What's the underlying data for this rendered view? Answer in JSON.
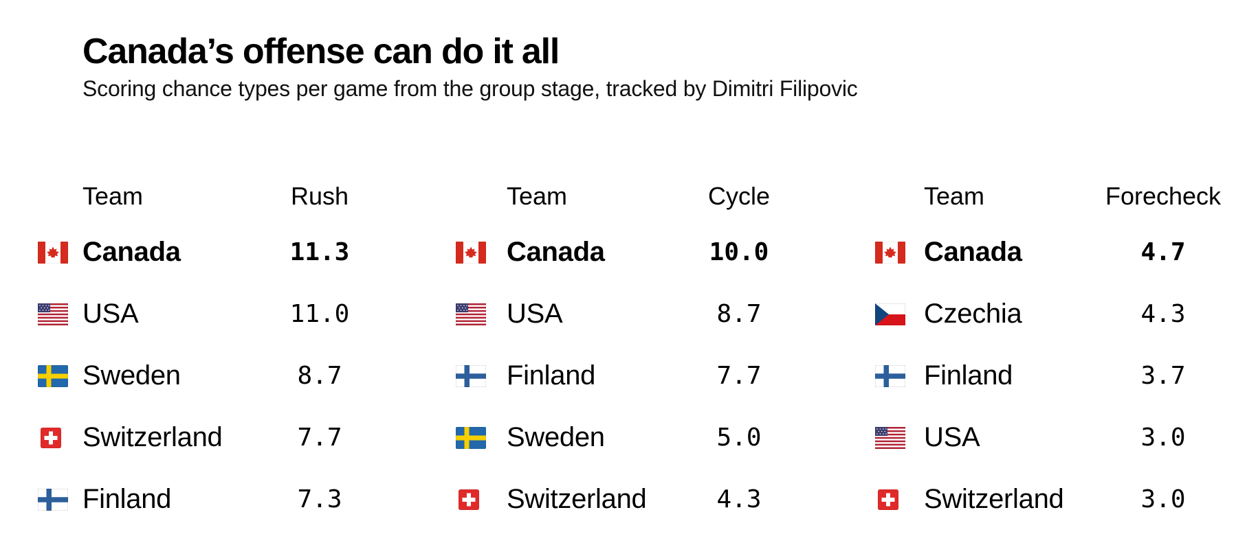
{
  "header": {
    "title": "Canada’s offense can do it all",
    "subtitle": "Scoring chance types per game from the group stage, tracked by Dimitri Filipovic"
  },
  "tables": [
    {
      "team_header": "Team",
      "value_header": "Rush",
      "rows": [
        {
          "team": "Canada",
          "flag": "canada",
          "value": "11.3",
          "leader": true
        },
        {
          "team": "USA",
          "flag": "usa",
          "value": "11.0",
          "leader": false
        },
        {
          "team": "Sweden",
          "flag": "sweden",
          "value": "8.7",
          "leader": false
        },
        {
          "team": "Switzerland",
          "flag": "switzerland",
          "value": "7.7",
          "leader": false
        },
        {
          "team": "Finland",
          "flag": "finland",
          "value": "7.3",
          "leader": false
        }
      ]
    },
    {
      "team_header": "Team",
      "value_header": "Cycle",
      "rows": [
        {
          "team": "Canada",
          "flag": "canada",
          "value": "10.0",
          "leader": true
        },
        {
          "team": "USA",
          "flag": "usa",
          "value": "8.7",
          "leader": false
        },
        {
          "team": "Finland",
          "flag": "finland",
          "value": "7.7",
          "leader": false
        },
        {
          "team": "Sweden",
          "flag": "sweden",
          "value": "5.0",
          "leader": false
        },
        {
          "team": "Switzerland",
          "flag": "switzerland",
          "value": "4.3",
          "leader": false
        }
      ]
    },
    {
      "team_header": "Team",
      "value_header": "Forecheck",
      "rows": [
        {
          "team": "Canada",
          "flag": "canada",
          "value": "4.7",
          "leader": true
        },
        {
          "team": "Czechia",
          "flag": "czechia",
          "value": "4.3",
          "leader": false
        },
        {
          "team": "Finland",
          "flag": "finland",
          "value": "3.7",
          "leader": false
        },
        {
          "team": "USA",
          "flag": "usa",
          "value": "3.0",
          "leader": false
        },
        {
          "team": "Switzerland",
          "flag": "switzerland",
          "value": "3.0",
          "leader": false
        }
      ]
    }
  ],
  "chart_data": [
    {
      "type": "table",
      "title": "Rush",
      "columns": [
        "Team",
        "Rush"
      ],
      "rows": [
        [
          "Canada",
          11.3
        ],
        [
          "USA",
          11.0
        ],
        [
          "Sweden",
          8.7
        ],
        [
          "Switzerland",
          7.7
        ],
        [
          "Finland",
          7.3
        ]
      ]
    },
    {
      "type": "table",
      "title": "Cycle",
      "columns": [
        "Team",
        "Cycle"
      ],
      "rows": [
        [
          "Canada",
          10.0
        ],
        [
          "USA",
          8.7
        ],
        [
          "Finland",
          7.7
        ],
        [
          "Sweden",
          5.0
        ],
        [
          "Switzerland",
          4.3
        ]
      ]
    },
    {
      "type": "table",
      "title": "Forecheck",
      "columns": [
        "Team",
        "Forecheck"
      ],
      "rows": [
        [
          "Canada",
          4.7
        ],
        [
          "Czechia",
          4.3
        ],
        [
          "Finland",
          3.7
        ],
        [
          "USA",
          3.0
        ],
        [
          "Switzerland",
          3.0
        ]
      ]
    }
  ],
  "colors": {
    "title_text": "#000000",
    "body_text": "#111111",
    "canada_red": "#d52b1e",
    "usa_red": "#b22234",
    "usa_blue": "#3c3b6e",
    "sweden_blue": "#2268ab",
    "sweden_yellow": "#f6cf00",
    "finland_blue": "#2c5f9b",
    "swiss_red": "#e02a2a",
    "czech_blue": "#11457e",
    "czech_red": "#d7141a"
  }
}
